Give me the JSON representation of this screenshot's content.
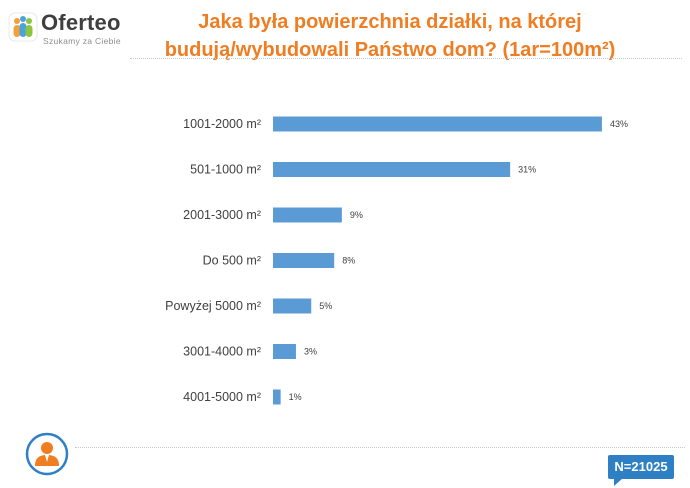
{
  "brand": {
    "name": "Oferteo",
    "tagline": "Szukamy za Ciebie",
    "colors": {
      "title": "#ef7d22",
      "bar": "#5b9bd5",
      "badge": "#2e7fc4"
    }
  },
  "title_lines": [
    "Jaka była powierzchnia działki, na której",
    "budują/wybudowali Państwo dom? (1ar=100m²)"
  ],
  "sample_size": "N=21025",
  "icons": {
    "user": "user-icon"
  },
  "chart_data": {
    "type": "bar",
    "orientation": "horizontal",
    "title": "Jaka była powierzchnia działki, na której budują/wybudowali Państwo dom? (1ar=100m²)",
    "categories": [
      "1001-2000 m²",
      "501-1000 m²",
      "2001-3000 m²",
      "Do 500 m²",
      "Powyżej 5000 m²",
      "3001-4000 m²",
      "4001-5000 m²"
    ],
    "values": [
      43,
      31,
      9,
      8,
      5,
      3,
      1
    ],
    "value_labels": [
      "43%",
      "31%",
      "9%",
      "8%",
      "5%",
      "3%",
      "1%"
    ],
    "unit": "%",
    "xlim": [
      0,
      50
    ],
    "grid": false,
    "legend": "none"
  }
}
